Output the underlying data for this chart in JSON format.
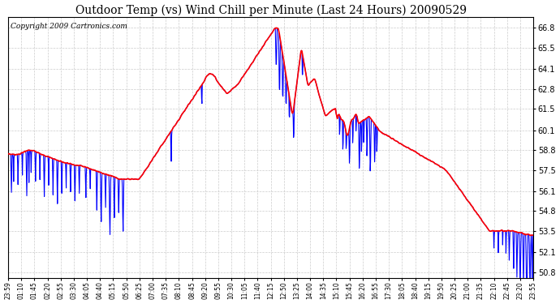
{
  "title": "Outdoor Temp (vs) Wind Chill per Minute (Last 24 Hours) 20090529",
  "copyright_text": "Copyright 2009 Cartronics.com",
  "y_ticks": [
    50.8,
    52.1,
    53.5,
    54.8,
    56.1,
    57.5,
    58.8,
    60.1,
    61.5,
    62.8,
    64.1,
    65.5,
    66.8
  ],
  "y_min": 50.4,
  "y_max": 67.5,
  "x_labels": [
    "23:59",
    "01:10",
    "01:45",
    "02:20",
    "02:55",
    "03:30",
    "04:05",
    "04:40",
    "05:15",
    "05:50",
    "06:25",
    "07:00",
    "07:35",
    "08:10",
    "08:45",
    "09:20",
    "09:55",
    "10:30",
    "11:05",
    "11:40",
    "12:15",
    "12:50",
    "13:25",
    "14:00",
    "14:35",
    "15:10",
    "15:45",
    "16:20",
    "16:55",
    "17:30",
    "18:05",
    "18:40",
    "19:15",
    "19:50",
    "20:25",
    "21:00",
    "21:35",
    "22:10",
    "22:45",
    "23:20",
    "23:55"
  ],
  "background_color": "#ffffff",
  "plot_bg_color": "#ffffff",
  "grid_color": "#cccccc",
  "title_color": "#000000",
  "red_line_color": "#ff0000",
  "blue_line_color": "#0000ff",
  "title_fontsize": 10,
  "copyright_fontsize": 6.5,
  "fig_width": 6.9,
  "fig_height": 3.75,
  "fig_dpi": 100
}
